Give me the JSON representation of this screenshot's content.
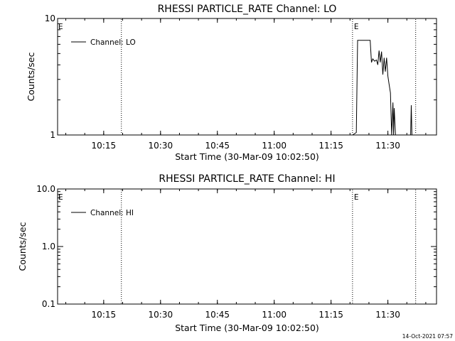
{
  "footer": {
    "timestamp": "14-Oct-2021 07:57"
  },
  "chart_data": [
    {
      "type": "line",
      "title": "RHESSI PARTICLE_RATE Channel: LO",
      "xlabel": "Start Time (30-Mar-09 10:02:50)",
      "ylabel": "Counts/sec",
      "yscale": "log",
      "xlim": [
        "10:02:50",
        "11:42:50"
      ],
      "ylim": [
        1,
        10
      ],
      "x_ticks": [
        "10:15",
        "10:30",
        "10:45",
        "11:00",
        "11:15",
        "11:30"
      ],
      "y_ticks": [
        "1",
        "10"
      ],
      "legend": {
        "placement": "top-left",
        "entries": [
          "Channel: LO"
        ]
      },
      "vlines": [
        {
          "time": "10:19:40",
          "label": ""
        },
        {
          "time": "11:20:40",
          "label": "E"
        },
        {
          "time": "11:37:20",
          "label": ""
        }
      ],
      "edge_markers": [
        {
          "time": "10:02:50",
          "label": "E"
        }
      ],
      "series": [
        {
          "name": "Channel: LO",
          "x": [
            "11:20:40",
            "11:21:40",
            "11:22:00",
            "11:22:20",
            "11:22:40",
            "11:23:00",
            "11:25:20",
            "11:25:40",
            "11:26:00",
            "11:26:30",
            "11:27:00",
            "11:27:20",
            "11:27:40",
            "11:28:00",
            "11:28:20",
            "11:28:40",
            "11:29:00",
            "11:29:20",
            "11:29:40",
            "11:30:00",
            "11:30:20",
            "11:30:40",
            "11:31:00",
            "11:31:20",
            "11:31:30",
            "11:31:40",
            "11:32:00",
            "11:32:10"
          ],
          "y": [
            1,
            1.05,
            6.5,
            6.5,
            6.5,
            6.5,
            6.5,
            4.2,
            4.5,
            4.3,
            4.4,
            4.0,
            5.3,
            4.2,
            5.2,
            3.3,
            4.6,
            3.5,
            4.6,
            3.2,
            2.7,
            2.3,
            1.0,
            1.9,
            1.0,
            1.7,
            1.0,
            1.0
          ]
        }
      ],
      "extra_segments": [
        {
          "x": [
            "11:36:00",
            "11:36:10",
            "11:36:20"
          ],
          "y": [
            1.0,
            1.8,
            1.0
          ]
        }
      ]
    },
    {
      "type": "line",
      "title": "RHESSI PARTICLE_RATE Channel: HI",
      "xlabel": "Start Time (30-Mar-09 10:02:50)",
      "ylabel": "Counts/sec",
      "yscale": "log",
      "xlim": [
        "10:02:50",
        "11:42:50"
      ],
      "ylim": [
        0.1,
        10
      ],
      "x_ticks": [
        "10:15",
        "10:30",
        "10:45",
        "11:00",
        "11:15",
        "11:30"
      ],
      "y_ticks": [
        "0.1",
        "1.0",
        "10.0"
      ],
      "legend": {
        "placement": "top-left",
        "entries": [
          "Channel: HI"
        ]
      },
      "vlines": [
        {
          "time": "10:19:40",
          "label": ""
        },
        {
          "time": "11:20:40",
          "label": "E"
        },
        {
          "time": "11:37:20",
          "label": ""
        }
      ],
      "edge_markers": [
        {
          "time": "10:02:50",
          "label": "E"
        }
      ],
      "series": [
        {
          "name": "Channel: HI",
          "x": [],
          "y": []
        }
      ]
    }
  ]
}
